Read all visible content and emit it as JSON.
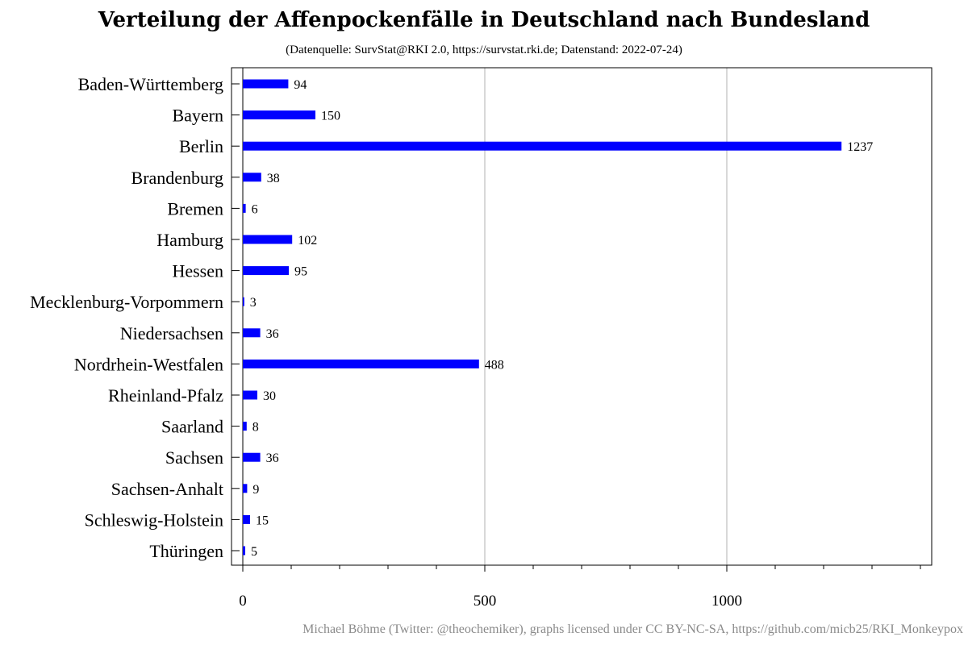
{
  "chart_data": {
    "type": "bar",
    "orientation": "horizontal",
    "title": "Verteilung der Affenpockenfälle in Deutschland nach Bundesland",
    "subtitle": "(Datenquelle: SurvStat@RKI 2.0, https://survstat.rki.de; Datenstand: 2022-07-24)",
    "xlabel": "",
    "ylabel": "",
    "categories": [
      "Baden-Württemberg",
      "Bayern",
      "Berlin",
      "Brandenburg",
      "Bremen",
      "Hamburg",
      "Hessen",
      "Mecklenburg-Vorpommern",
      "Niedersachsen",
      "Nordrhein-Westfalen",
      "Rheinland-Pfalz",
      "Saarland",
      "Sachsen",
      "Sachsen-Anhalt",
      "Schleswig-Holstein",
      "Thüringen"
    ],
    "values": [
      94,
      150,
      1237,
      38,
      6,
      102,
      95,
      3,
      36,
      488,
      30,
      8,
      36,
      9,
      15,
      5
    ],
    "xlim": [
      0,
      1420
    ],
    "xticks_major": [
      0,
      500,
      1000
    ],
    "xtick_labels": [
      "0",
      "500",
      "1000"
    ],
    "xticks_minor": [
      100,
      200,
      300,
      400,
      600,
      700,
      800,
      900,
      1100,
      1200,
      1300,
      1400
    ],
    "grid": "vertical major lines",
    "bar_color": "#0000ff",
    "grid_color": "#b0b0b0",
    "footer": "Michael Böhme (Twitter: @theochemiker), graphs licensed under CC BY-NC-SA, https://github.com/micb25/RKI_Monkeypox"
  }
}
